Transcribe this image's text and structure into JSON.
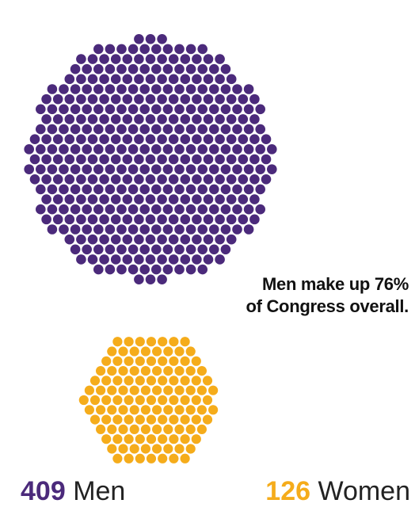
{
  "chart_data": {
    "type": "dot-cluster",
    "title": "",
    "series": [
      {
        "name": "Men",
        "value": 409,
        "color": "#4b2a7b"
      },
      {
        "name": "Women",
        "value": 126,
        "color": "#f5ac1b"
      }
    ],
    "annotation": [
      "Men make up 76%",
      "of Congress overall."
    ]
  },
  "legend": {
    "men": {
      "value": "409",
      "label": "Men",
      "color": "#4b2a7b"
    },
    "women": {
      "value": "126",
      "label": "Women",
      "color": "#f5ac1b"
    }
  }
}
